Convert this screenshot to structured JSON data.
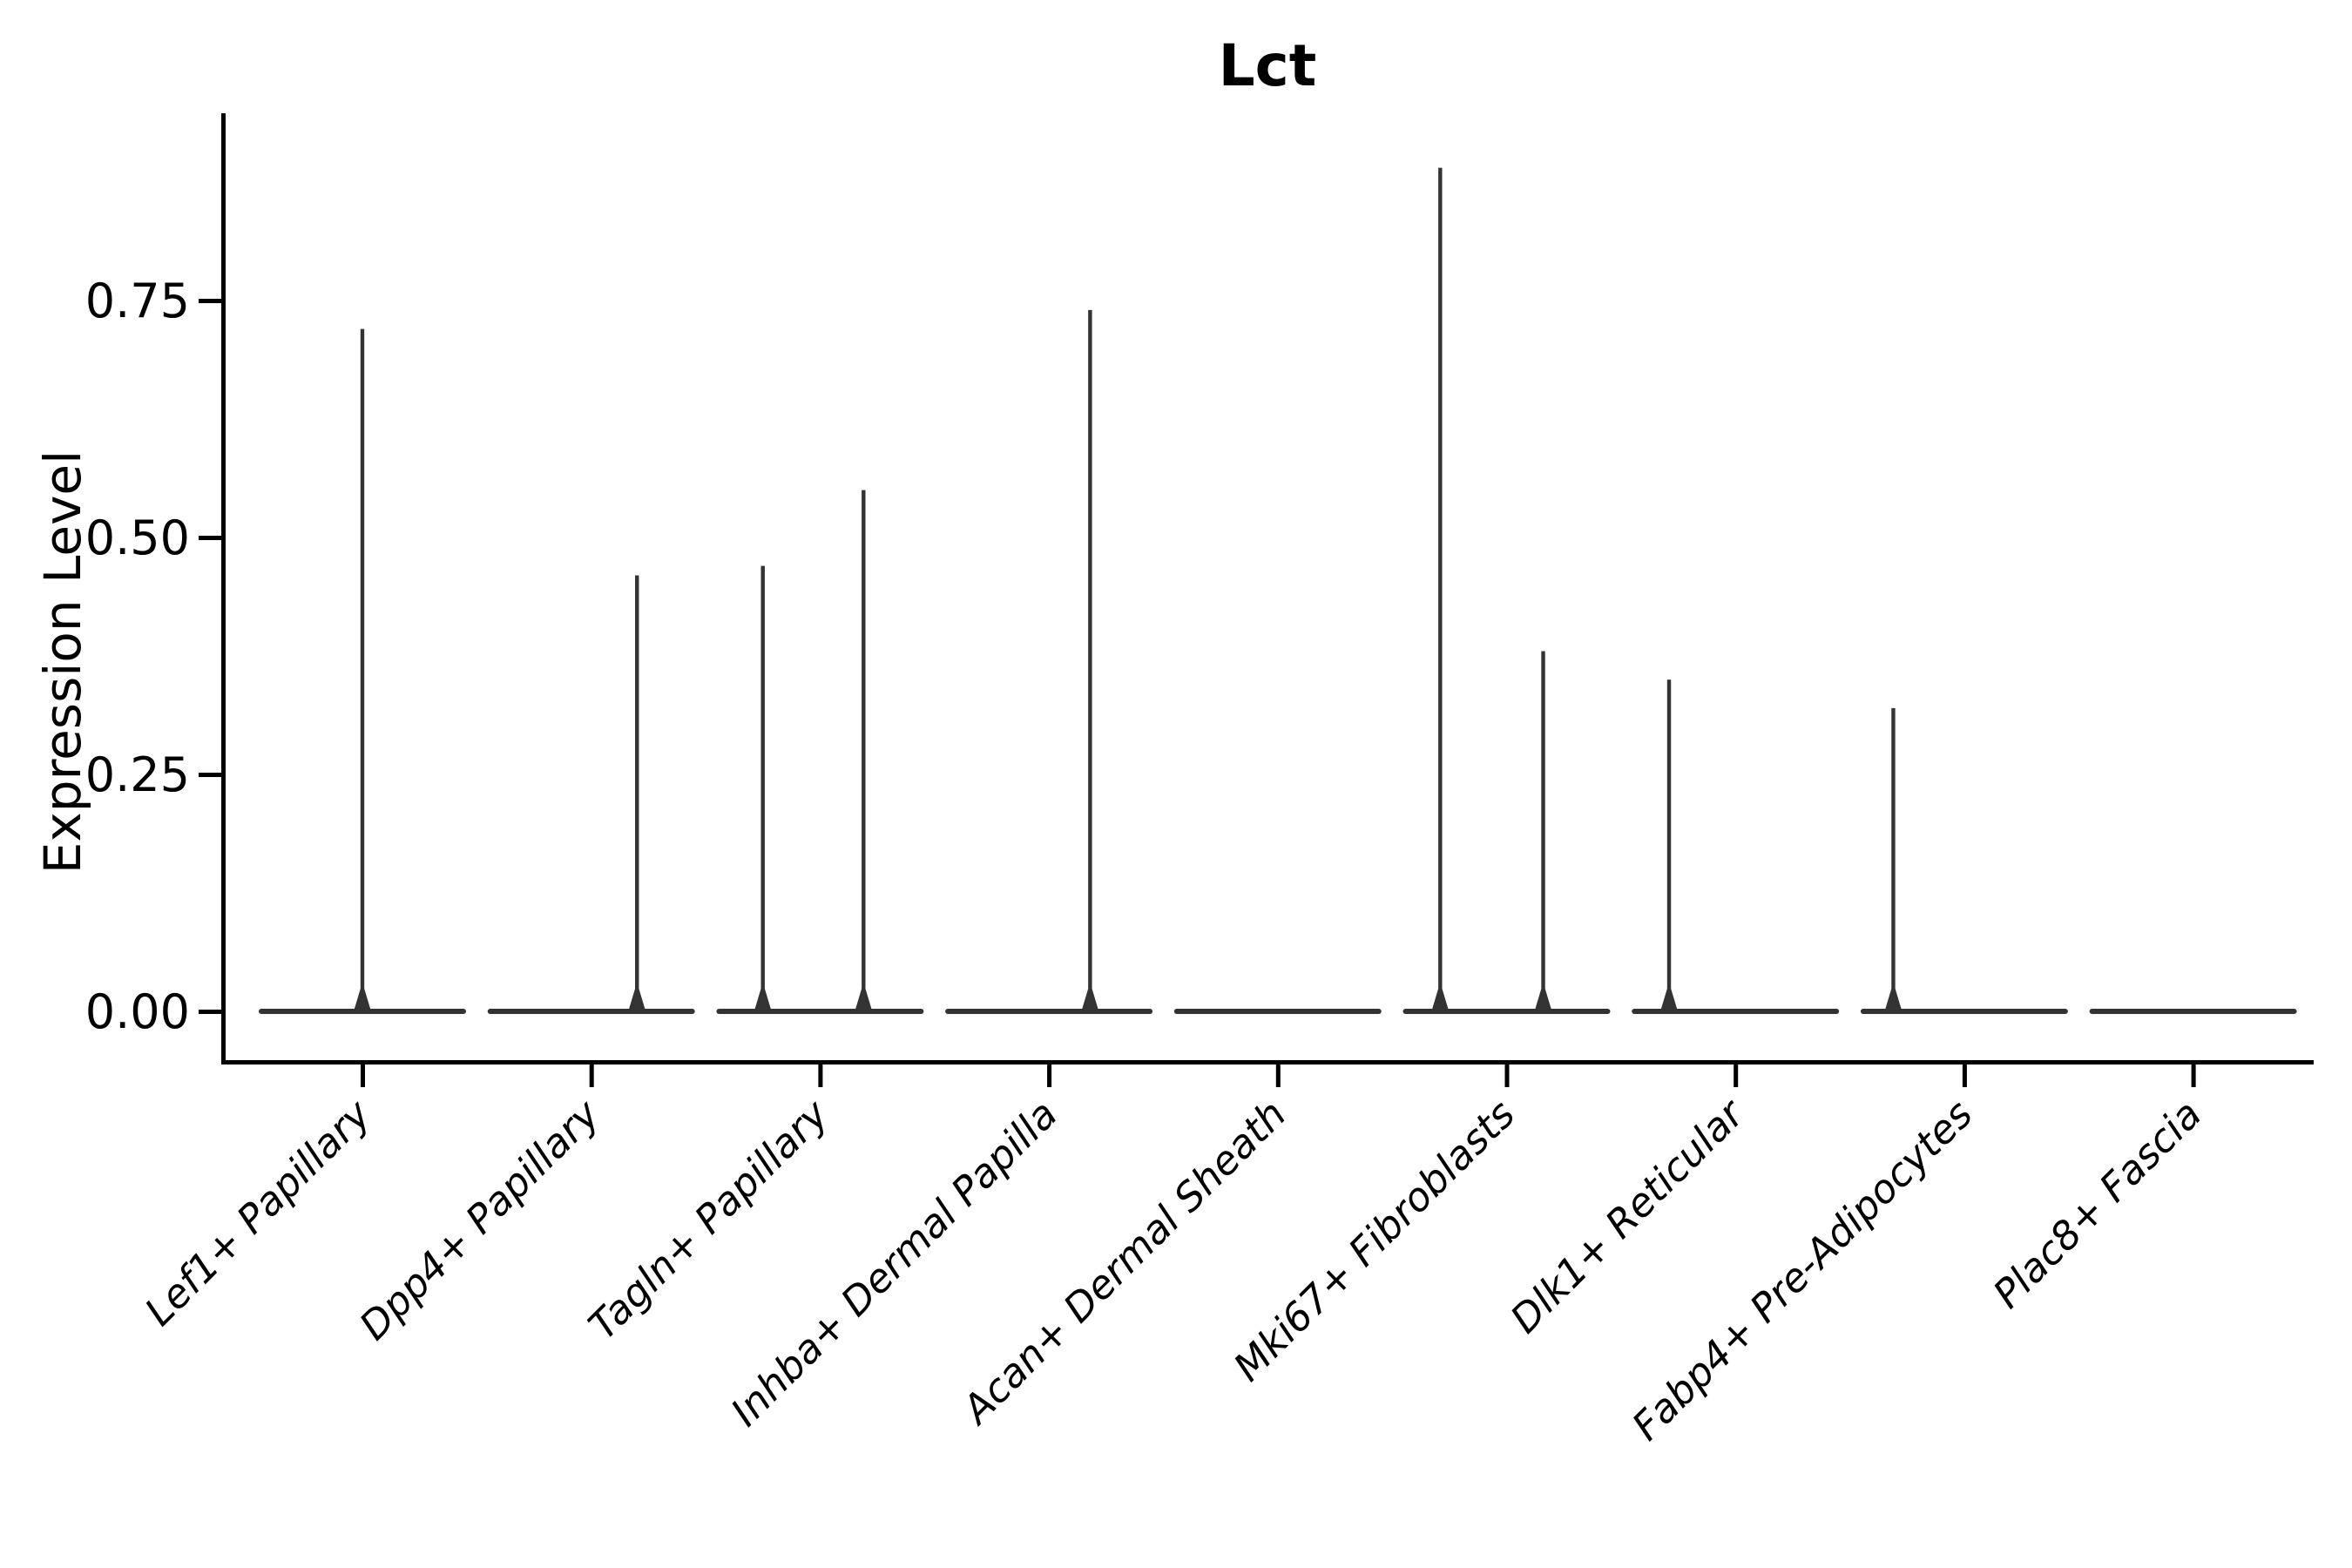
{
  "chart_data": {
    "type": "violin",
    "title": "Lct",
    "xlabel": "",
    "ylabel": "Expression Level",
    "y_ticks": [
      0.0,
      0.25,
      0.5,
      0.75
    ],
    "y_tick_labels": [
      "0.00",
      "0.25",
      "0.50",
      "0.75"
    ],
    "ylim": [
      -0.052,
      0.948
    ],
    "grid": false,
    "legend": "none",
    "categories": [
      "Lef1+ Papillary",
      "Dpp4+ Papillary",
      "Tagln+ Papillary",
      "Inhba+ Dermal Papilla",
      "Acan+ Dermal Sheath",
      "Mki67+ Fibroblasts",
      "Dlk1+ Reticular",
      "Fabp4+ Pre-Adipocytes",
      "Plac8+ Fascia"
    ],
    "series": [
      {
        "name": "Lef1+ Papillary",
        "base_value": 0.0,
        "tails": [
          {
            "offset_frac": 0.0,
            "value": 0.72
          }
        ]
      },
      {
        "name": "Dpp4+ Papillary",
        "base_value": 0.0,
        "tails": [
          {
            "offset_frac": 0.2,
            "value": 0.46
          }
        ]
      },
      {
        "name": "Tagln+ Papillary",
        "base_value": 0.0,
        "tails": [
          {
            "offset_frac": -0.25,
            "value": 0.47
          },
          {
            "offset_frac": 0.19,
            "value": 0.55
          }
        ]
      },
      {
        "name": "Inhba+ Dermal Papilla",
        "base_value": 0.0,
        "tails": [
          {
            "offset_frac": 0.18,
            "value": 0.74
          }
        ]
      },
      {
        "name": "Acan+ Dermal Sheath",
        "base_value": 0.0,
        "tails": []
      },
      {
        "name": "Mki67+ Fibroblasts",
        "base_value": 0.0,
        "tails": [
          {
            "offset_frac": -0.29,
            "value": 0.89
          },
          {
            "offset_frac": 0.16,
            "value": 0.38
          }
        ]
      },
      {
        "name": "Dlk1+ Reticular",
        "base_value": 0.0,
        "tails": [
          {
            "offset_frac": -0.29,
            "value": 0.35
          }
        ]
      },
      {
        "name": "Fabp4+ Pre-Adipocytes",
        "base_value": 0.0,
        "tails": [
          {
            "offset_frac": -0.31,
            "value": 0.32
          }
        ]
      },
      {
        "name": "Plac8+ Fascia",
        "base_value": 0.0,
        "tails": []
      }
    ],
    "colors": {
      "violin_line": "#333333",
      "axis": "#000000",
      "text": "#000000",
      "background": "#ffffff"
    }
  }
}
